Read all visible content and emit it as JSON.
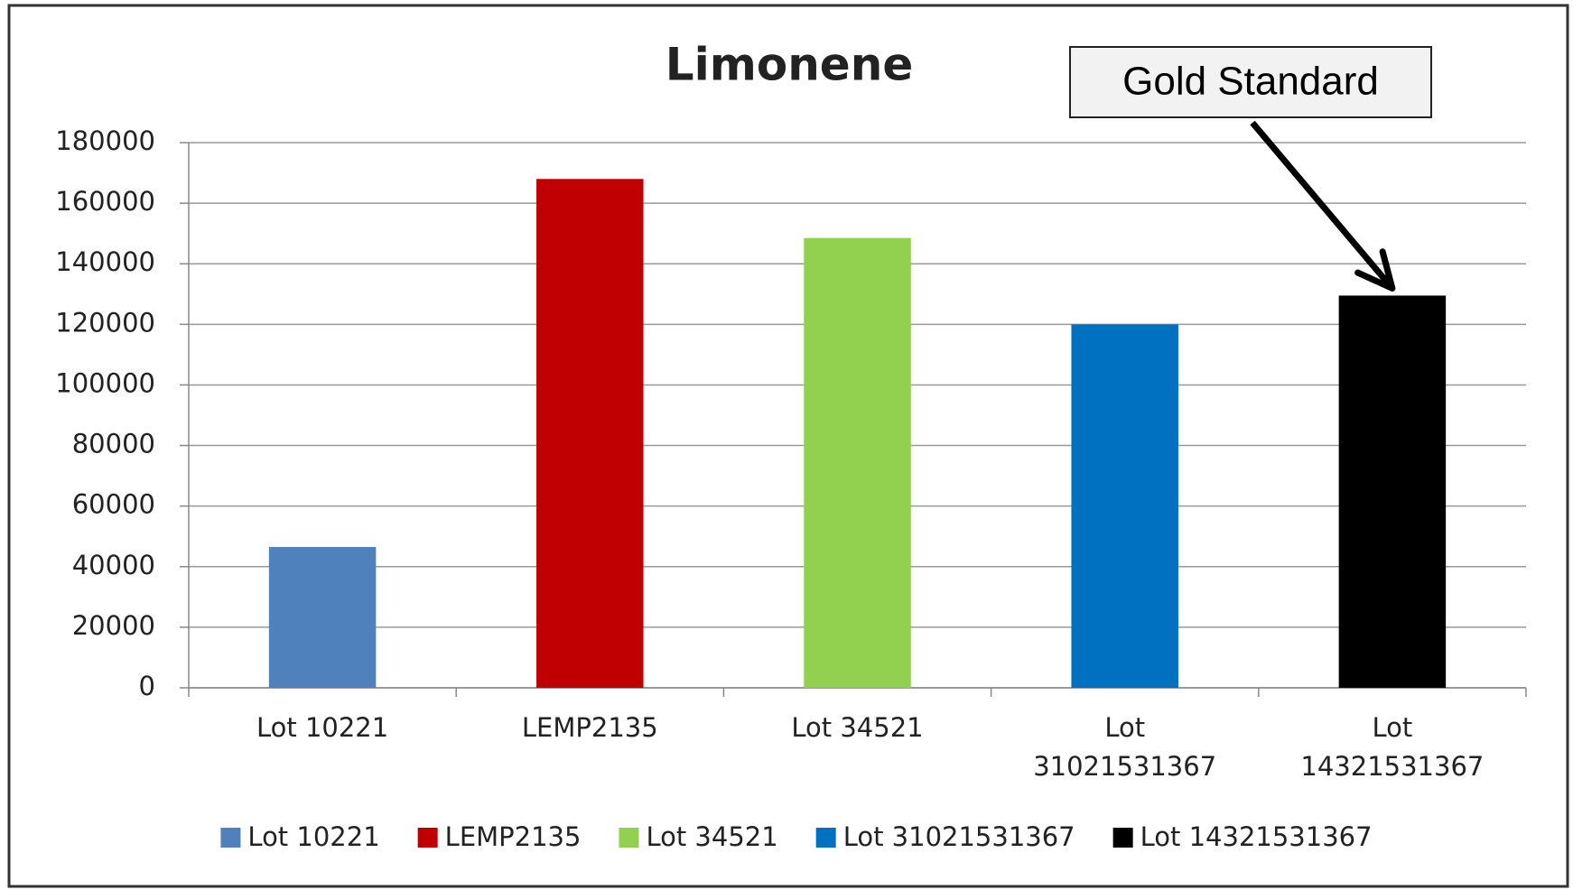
{
  "chart_data": {
    "type": "bar",
    "title": "Limonene",
    "categories": [
      "Lot 10221",
      "LEMP2135",
      "Lot 34521",
      "Lot 31021531367",
      "Lot 14321531367"
    ],
    "values": [
      46500,
      168000,
      148500,
      120000,
      129500
    ],
    "colors": [
      "#4f81bd",
      "#c00000",
      "#92d050",
      "#0070c0",
      "#000000"
    ],
    "ylim": [
      0,
      180000
    ],
    "yticks": [
      0,
      20000,
      40000,
      60000,
      80000,
      100000,
      120000,
      140000,
      160000,
      180000
    ],
    "grid": true,
    "legend": "bottom",
    "annotations": [
      {
        "text": "Gold Standard",
        "target": 4
      }
    ]
  }
}
